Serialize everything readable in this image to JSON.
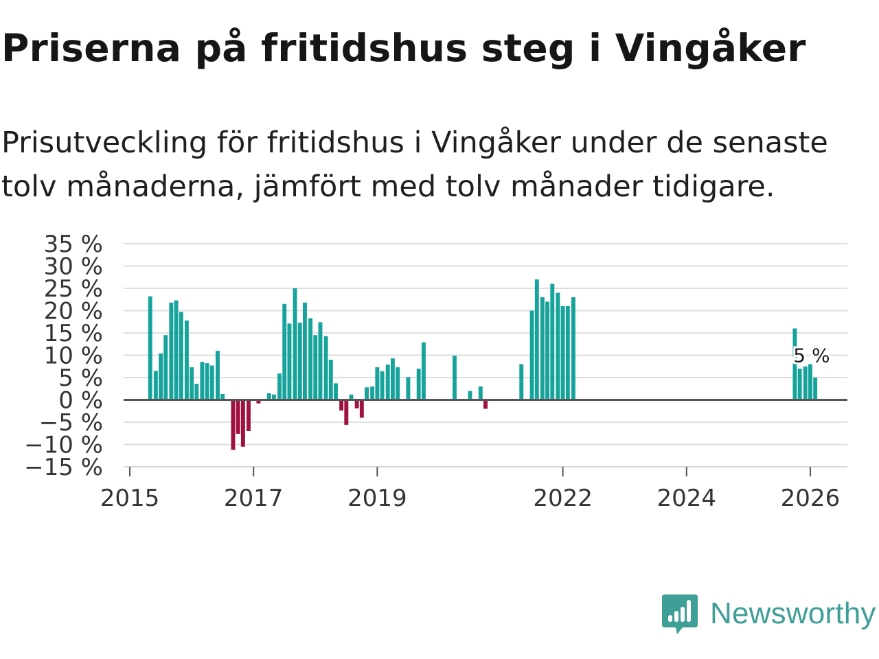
{
  "title": "Priserna på fritidshus steg i Vingåker",
  "subtitle": "Prisutveckling för fritidshus i Vingåker under de senaste tolv månaderna, jämfört med tolv månader tidigare.",
  "brand": {
    "name": "Newsworthy",
    "color": "#3f9f96"
  },
  "chart_data": {
    "type": "bar",
    "title": "Priserna på fritidshus steg i Vingåker",
    "xlabel": "",
    "ylabel": "",
    "ylim": [
      -15,
      35
    ],
    "xlim": [
      2014.9,
      2026.6
    ],
    "yticks": [
      35,
      30,
      25,
      20,
      15,
      10,
      5,
      0,
      -5,
      -10,
      -15
    ],
    "ytick_labels": [
      "35 %",
      "30 %",
      "25 %",
      "20 %",
      "15 %",
      "10 %",
      "5 %",
      "0 %",
      "−5 %",
      "−10 %",
      "−15 %"
    ],
    "xticks": [
      2015,
      2017,
      2019,
      2022,
      2024,
      2026
    ],
    "xtick_labels": [
      "2015",
      "2017",
      "2019",
      "2022",
      "2024",
      "2026"
    ],
    "grid": true,
    "positive_color": "#16a39b",
    "negative_color": "#a0113f",
    "annotation": {
      "text": "5 %",
      "x": 2026.0,
      "y": 10
    },
    "series": [
      {
        "name": "Prisutveckling",
        "points": [
          {
            "x": 2015.33,
            "y": 23.2
          },
          {
            "x": 2015.42,
            "y": 6.5
          },
          {
            "x": 2015.5,
            "y": 10.4
          },
          {
            "x": 2015.58,
            "y": 14.5
          },
          {
            "x": 2015.67,
            "y": 21.8
          },
          {
            "x": 2015.75,
            "y": 22.3
          },
          {
            "x": 2015.83,
            "y": 19.7
          },
          {
            "x": 2015.92,
            "y": 17.8
          },
          {
            "x": 2016.0,
            "y": 7.3
          },
          {
            "x": 2016.08,
            "y": 3.6
          },
          {
            "x": 2016.17,
            "y": 8.5
          },
          {
            "x": 2016.25,
            "y": 8.2
          },
          {
            "x": 2016.33,
            "y": 7.7
          },
          {
            "x": 2016.42,
            "y": 11.0
          },
          {
            "x": 2016.5,
            "y": 1.3
          },
          {
            "x": 2016.67,
            "y": -11.2
          },
          {
            "x": 2016.75,
            "y": -7.6
          },
          {
            "x": 2016.83,
            "y": -10.5
          },
          {
            "x": 2016.92,
            "y": -7.0
          },
          {
            "x": 2017.08,
            "y": -0.8
          },
          {
            "x": 2017.25,
            "y": 1.5
          },
          {
            "x": 2017.33,
            "y": 1.2
          },
          {
            "x": 2017.42,
            "y": 5.9
          },
          {
            "x": 2017.5,
            "y": 21.5
          },
          {
            "x": 2017.58,
            "y": 17.1
          },
          {
            "x": 2017.67,
            "y": 25.0
          },
          {
            "x": 2017.75,
            "y": 17.3
          },
          {
            "x": 2017.83,
            "y": 21.8
          },
          {
            "x": 2017.92,
            "y": 18.3
          },
          {
            "x": 2018.0,
            "y": 14.5
          },
          {
            "x": 2018.08,
            "y": 17.4
          },
          {
            "x": 2018.17,
            "y": 14.3
          },
          {
            "x": 2018.25,
            "y": 9.0
          },
          {
            "x": 2018.33,
            "y": 3.7
          },
          {
            "x": 2018.42,
            "y": -2.4
          },
          {
            "x": 2018.5,
            "y": -5.6
          },
          {
            "x": 2018.58,
            "y": 1.2
          },
          {
            "x": 2018.67,
            "y": -1.9
          },
          {
            "x": 2018.75,
            "y": -4.0
          },
          {
            "x": 2018.83,
            "y": 2.8
          },
          {
            "x": 2018.92,
            "y": 3.0
          },
          {
            "x": 2019.0,
            "y": 7.3
          },
          {
            "x": 2019.08,
            "y": 6.4
          },
          {
            "x": 2019.17,
            "y": 7.9
          },
          {
            "x": 2019.25,
            "y": 9.3
          },
          {
            "x": 2019.33,
            "y": 7.3
          },
          {
            "x": 2019.5,
            "y": 5.1
          },
          {
            "x": 2019.67,
            "y": 7.0
          },
          {
            "x": 2019.75,
            "y": 12.9
          },
          {
            "x": 2020.25,
            "y": 9.9
          },
          {
            "x": 2020.5,
            "y": 2.0
          },
          {
            "x": 2020.67,
            "y": 3.0
          },
          {
            "x": 2020.75,
            "y": -2.0
          },
          {
            "x": 2021.33,
            "y": 8.0
          },
          {
            "x": 2021.5,
            "y": 20.0
          },
          {
            "x": 2021.58,
            "y": 27.0
          },
          {
            "x": 2021.67,
            "y": 23.0
          },
          {
            "x": 2021.75,
            "y": 22.0
          },
          {
            "x": 2021.83,
            "y": 26.0
          },
          {
            "x": 2021.92,
            "y": 24.0
          },
          {
            "x": 2022.0,
            "y": 21.0
          },
          {
            "x": 2022.08,
            "y": 21.0
          },
          {
            "x": 2022.17,
            "y": 23.0
          },
          {
            "x": 2025.75,
            "y": 16.0
          },
          {
            "x": 2025.83,
            "y": 7.0
          },
          {
            "x": 2025.92,
            "y": 7.5
          },
          {
            "x": 2026.0,
            "y": 8.0
          },
          {
            "x": 2026.08,
            "y": 5.0
          }
        ]
      }
    ]
  }
}
